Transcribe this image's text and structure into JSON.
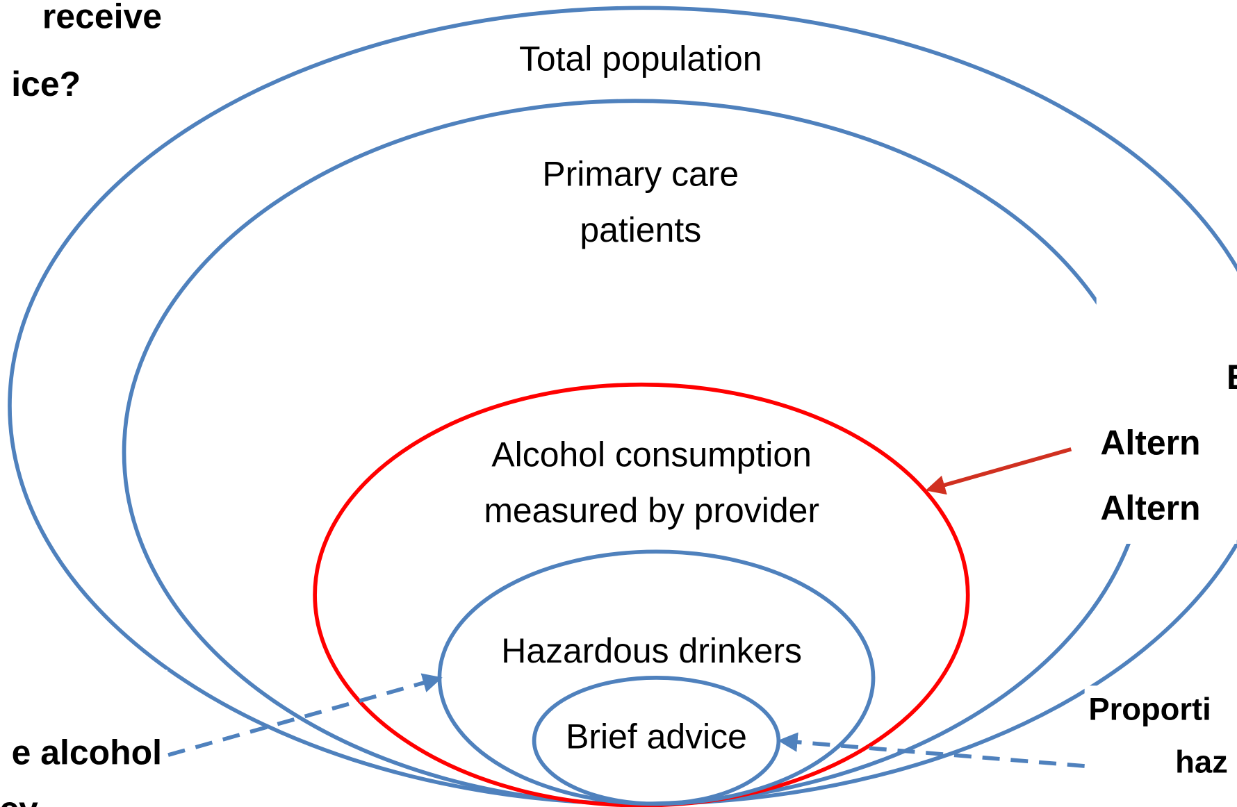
{
  "question_fragment": [
    "receive",
    "ice?"
  ],
  "rings": [
    {
      "label": [
        "Total population"
      ]
    },
    {
      "label": [
        "Primary care",
        "patients"
      ]
    },
    {
      "label": [
        "Alcohol consumption",
        "measured by provider"
      ]
    },
    {
      "label": [
        "Hazardous drinkers"
      ]
    },
    {
      "label": [
        "Brief advice"
      ]
    }
  ],
  "right_fragment": [
    "E",
    "Altern",
    "Altern"
  ],
  "left_bottom_fragment": [
    "e alcohol",
    "cy"
  ],
  "right_bottom_fragment": [
    "Proporti",
    "haz"
  ]
}
